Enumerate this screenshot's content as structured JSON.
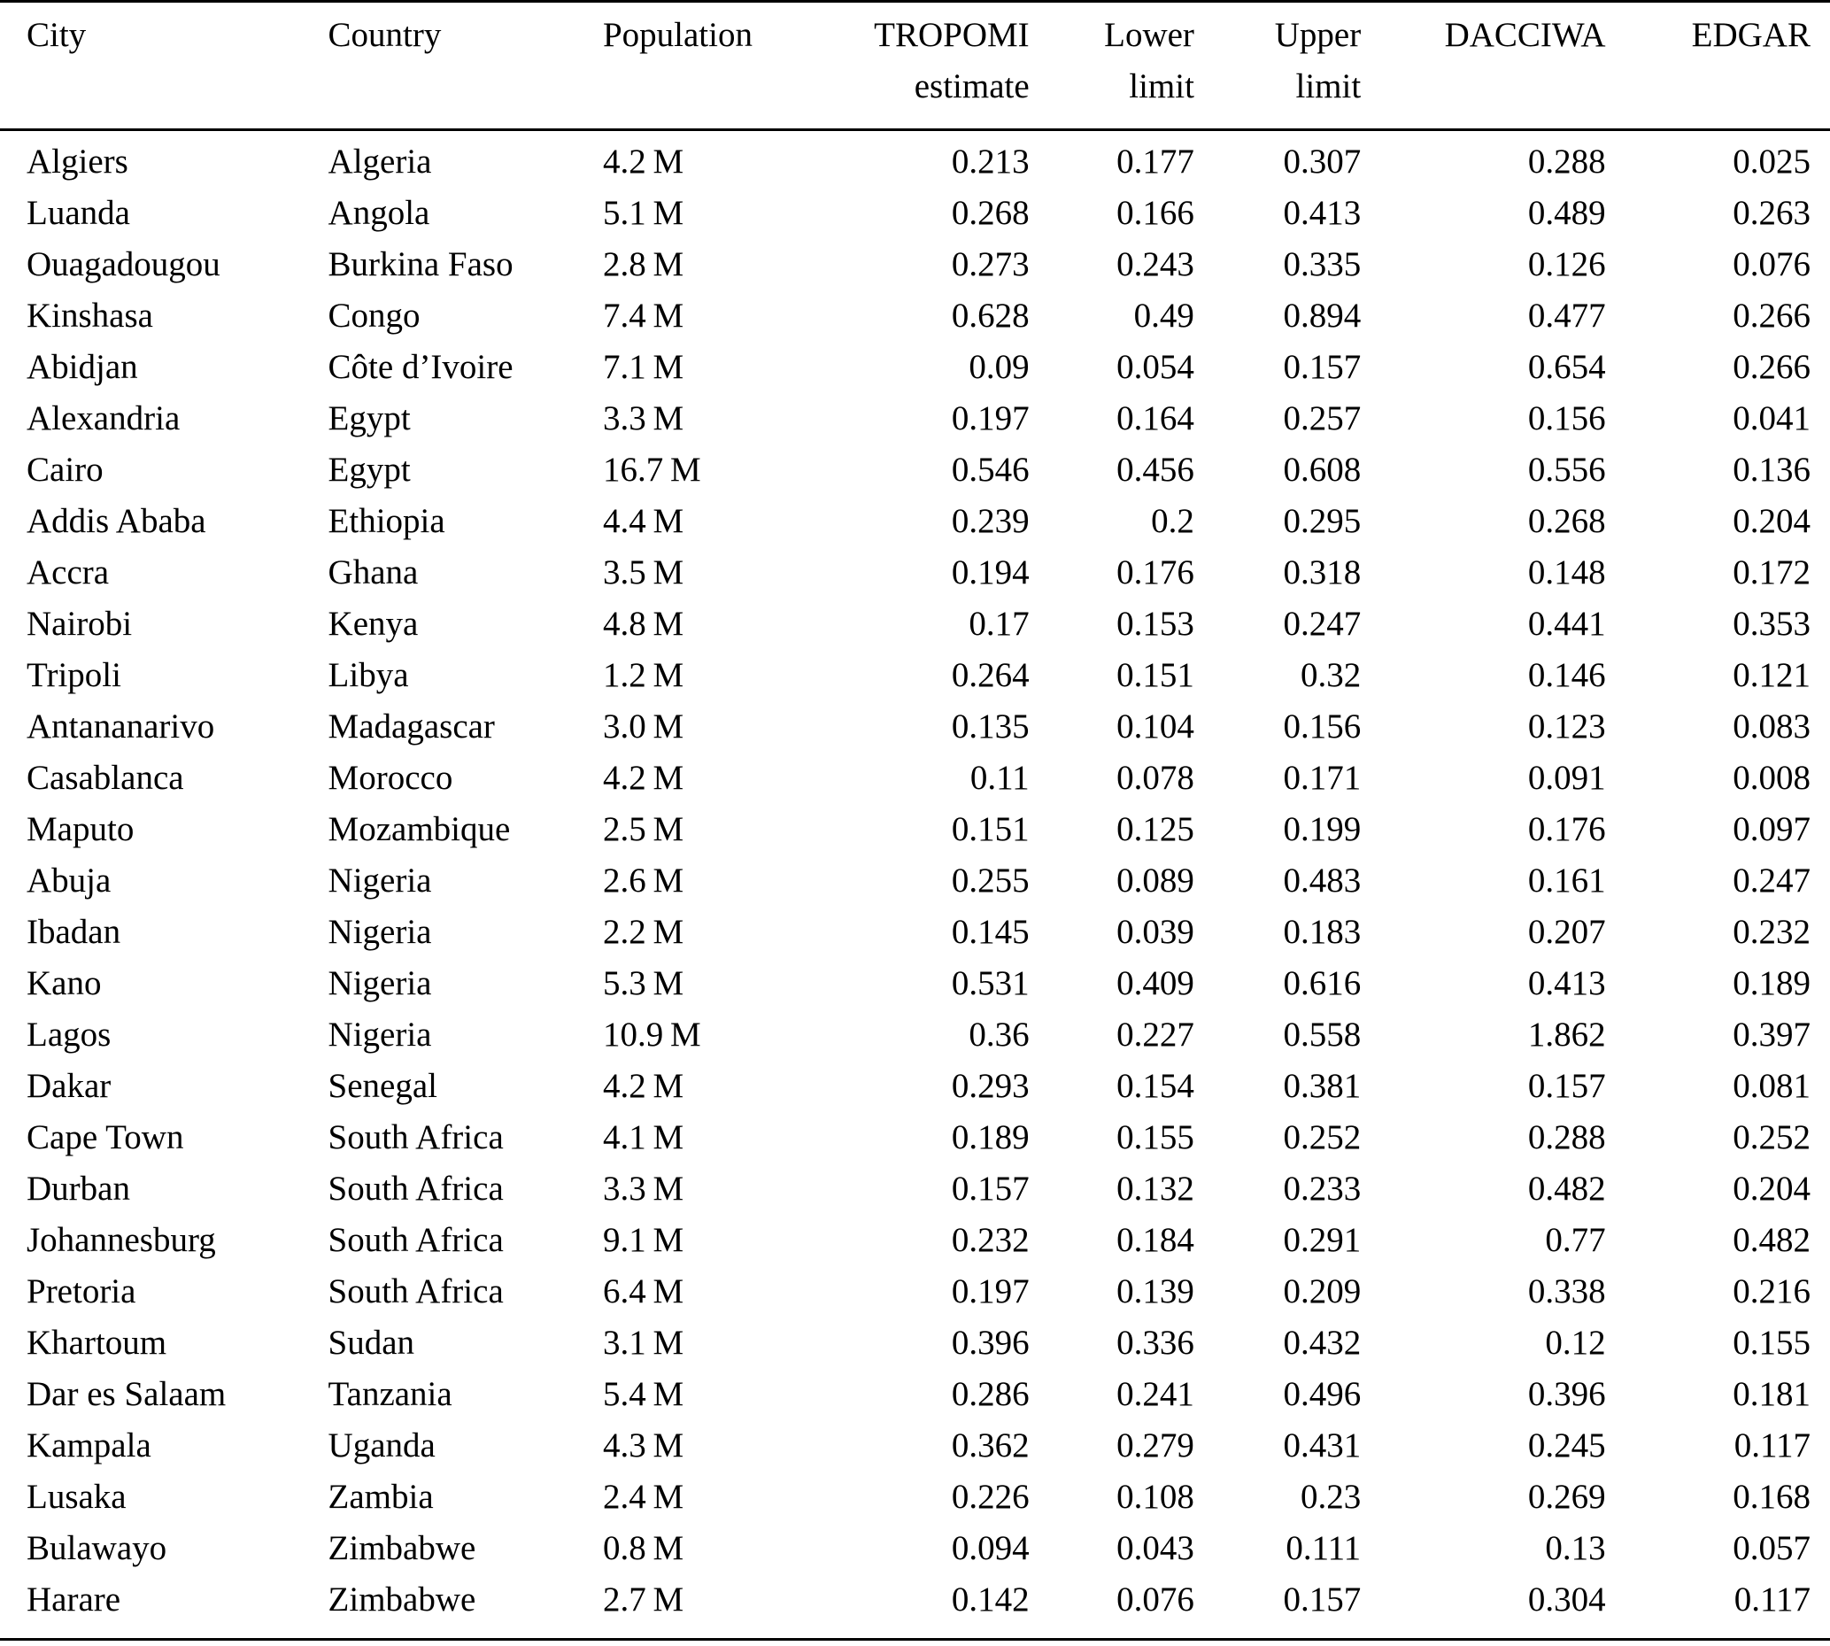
{
  "chart_data": {
    "type": "table",
    "columns": [
      {
        "key": "city",
        "label": "City",
        "header_lines": [
          "City"
        ],
        "align": "left"
      },
      {
        "key": "country",
        "label": "Country",
        "header_lines": [
          "Country"
        ],
        "align": "left"
      },
      {
        "key": "population",
        "label": "Population",
        "header_lines": [
          "Population"
        ],
        "align": "left"
      },
      {
        "key": "tropomi_estimate",
        "label": "TROPOMI estimate",
        "header_lines": [
          "TROPOMI",
          "estimate"
        ],
        "align": "right"
      },
      {
        "key": "lower_limit",
        "label": "Lower limit",
        "header_lines": [
          "Lower",
          "limit"
        ],
        "align": "right"
      },
      {
        "key": "upper_limit",
        "label": "Upper limit",
        "header_lines": [
          "Upper",
          "limit"
        ],
        "align": "right"
      },
      {
        "key": "dacciwa",
        "label": "DACCIWA",
        "header_lines": [
          "DACCIWA"
        ],
        "align": "right"
      },
      {
        "key": "edgar",
        "label": "EDGAR",
        "header_lines": [
          "EDGAR"
        ],
        "align": "right"
      }
    ],
    "rows": [
      {
        "city": "Algiers",
        "country": "Algeria",
        "population": "4.2 M",
        "tropomi_estimate": "0.213",
        "lower_limit": "0.177",
        "upper_limit": "0.307",
        "dacciwa": "0.288",
        "edgar": "0.025"
      },
      {
        "city": "Luanda",
        "country": "Angola",
        "population": "5.1 M",
        "tropomi_estimate": "0.268",
        "lower_limit": "0.166",
        "upper_limit": "0.413",
        "dacciwa": "0.489",
        "edgar": "0.263"
      },
      {
        "city": "Ouagadougou",
        "country": "Burkina Faso",
        "population": "2.8 M",
        "tropomi_estimate": "0.273",
        "lower_limit": "0.243",
        "upper_limit": "0.335",
        "dacciwa": "0.126",
        "edgar": "0.076"
      },
      {
        "city": "Kinshasa",
        "country": "Congo",
        "population": "7.4 M",
        "tropomi_estimate": "0.628",
        "lower_limit": "0.49",
        "upper_limit": "0.894",
        "dacciwa": "0.477",
        "edgar": "0.266"
      },
      {
        "city": "Abidjan",
        "country": "Côte d’Ivoire",
        "population": "7.1 M",
        "tropomi_estimate": "0.09",
        "lower_limit": "0.054",
        "upper_limit": "0.157",
        "dacciwa": "0.654",
        "edgar": "0.266"
      },
      {
        "city": "Alexandria",
        "country": "Egypt",
        "population": "3.3 M",
        "tropomi_estimate": "0.197",
        "lower_limit": "0.164",
        "upper_limit": "0.257",
        "dacciwa": "0.156",
        "edgar": "0.041"
      },
      {
        "city": "Cairo",
        "country": "Egypt",
        "population": "16.7 M",
        "tropomi_estimate": "0.546",
        "lower_limit": "0.456",
        "upper_limit": "0.608",
        "dacciwa": "0.556",
        "edgar": "0.136"
      },
      {
        "city": "Addis Ababa",
        "country": "Ethiopia",
        "population": "4.4 M",
        "tropomi_estimate": "0.239",
        "lower_limit": "0.2",
        "upper_limit": "0.295",
        "dacciwa": "0.268",
        "edgar": "0.204"
      },
      {
        "city": "Accra",
        "country": "Ghana",
        "population": "3.5 M",
        "tropomi_estimate": "0.194",
        "lower_limit": "0.176",
        "upper_limit": "0.318",
        "dacciwa": "0.148",
        "edgar": "0.172"
      },
      {
        "city": "Nairobi",
        "country": "Kenya",
        "population": "4.8 M",
        "tropomi_estimate": "0.17",
        "lower_limit": "0.153",
        "upper_limit": "0.247",
        "dacciwa": "0.441",
        "edgar": "0.353"
      },
      {
        "city": "Tripoli",
        "country": "Libya",
        "population": "1.2 M",
        "tropomi_estimate": "0.264",
        "lower_limit": "0.151",
        "upper_limit": "0.32",
        "dacciwa": "0.146",
        "edgar": "0.121"
      },
      {
        "city": "Antananarivo",
        "country": "Madagascar",
        "population": "3.0 M",
        "tropomi_estimate": "0.135",
        "lower_limit": "0.104",
        "upper_limit": "0.156",
        "dacciwa": "0.123",
        "edgar": "0.083"
      },
      {
        "city": "Casablanca",
        "country": "Morocco",
        "population": "4.2 M",
        "tropomi_estimate": "0.11",
        "lower_limit": "0.078",
        "upper_limit": "0.171",
        "dacciwa": "0.091",
        "edgar": "0.008"
      },
      {
        "city": "Maputo",
        "country": "Mozambique",
        "population": "2.5 M",
        "tropomi_estimate": "0.151",
        "lower_limit": "0.125",
        "upper_limit": "0.199",
        "dacciwa": "0.176",
        "edgar": "0.097"
      },
      {
        "city": "Abuja",
        "country": "Nigeria",
        "population": "2.6 M",
        "tropomi_estimate": "0.255",
        "lower_limit": "0.089",
        "upper_limit": "0.483",
        "dacciwa": "0.161",
        "edgar": "0.247"
      },
      {
        "city": "Ibadan",
        "country": "Nigeria",
        "population": "2.2 M",
        "tropomi_estimate": "0.145",
        "lower_limit": "0.039",
        "upper_limit": "0.183",
        "dacciwa": "0.207",
        "edgar": "0.232"
      },
      {
        "city": "Kano",
        "country": "Nigeria",
        "population": "5.3 M",
        "tropomi_estimate": "0.531",
        "lower_limit": "0.409",
        "upper_limit": "0.616",
        "dacciwa": "0.413",
        "edgar": "0.189"
      },
      {
        "city": "Lagos",
        "country": "Nigeria",
        "population": "10.9 M",
        "tropomi_estimate": "0.36",
        "lower_limit": "0.227",
        "upper_limit": "0.558",
        "dacciwa": "1.862",
        "edgar": "0.397"
      },
      {
        "city": "Dakar",
        "country": "Senegal",
        "population": "4.2 M",
        "tropomi_estimate": "0.293",
        "lower_limit": "0.154",
        "upper_limit": "0.381",
        "dacciwa": "0.157",
        "edgar": "0.081"
      },
      {
        "city": "Cape Town",
        "country": "South Africa",
        "population": "4.1 M",
        "tropomi_estimate": "0.189",
        "lower_limit": "0.155",
        "upper_limit": "0.252",
        "dacciwa": "0.288",
        "edgar": "0.252"
      },
      {
        "city": "Durban",
        "country": "South Africa",
        "population": "3.3 M",
        "tropomi_estimate": "0.157",
        "lower_limit": "0.132",
        "upper_limit": "0.233",
        "dacciwa": "0.482",
        "edgar": "0.204"
      },
      {
        "city": "Johannesburg",
        "country": "South Africa",
        "population": "9.1 M",
        "tropomi_estimate": "0.232",
        "lower_limit": "0.184",
        "upper_limit": "0.291",
        "dacciwa": "0.77",
        "edgar": "0.482"
      },
      {
        "city": "Pretoria",
        "country": "South Africa",
        "population": "6.4 M",
        "tropomi_estimate": "0.197",
        "lower_limit": "0.139",
        "upper_limit": "0.209",
        "dacciwa": "0.338",
        "edgar": "0.216"
      },
      {
        "city": "Khartoum",
        "country": "Sudan",
        "population": "3.1 M",
        "tropomi_estimate": "0.396",
        "lower_limit": "0.336",
        "upper_limit": "0.432",
        "dacciwa": "0.12",
        "edgar": "0.155"
      },
      {
        "city": "Dar es Salaam",
        "country": "Tanzania",
        "population": "5.4 M",
        "tropomi_estimate": "0.286",
        "lower_limit": "0.241",
        "upper_limit": "0.496",
        "dacciwa": "0.396",
        "edgar": "0.181"
      },
      {
        "city": "Kampala",
        "country": "Uganda",
        "population": "4.3 M",
        "tropomi_estimate": "0.362",
        "lower_limit": "0.279",
        "upper_limit": "0.431",
        "dacciwa": "0.245",
        "edgar": "0.117"
      },
      {
        "city": "Lusaka",
        "country": "Zambia",
        "population": "2.4 M",
        "tropomi_estimate": "0.226",
        "lower_limit": "0.108",
        "upper_limit": "0.23",
        "dacciwa": "0.269",
        "edgar": "0.168"
      },
      {
        "city": "Bulawayo",
        "country": "Zimbabwe",
        "population": "0.8 M",
        "tropomi_estimate": "0.094",
        "lower_limit": "0.043",
        "upper_limit": "0.111",
        "dacciwa": "0.13",
        "edgar": "0.057"
      },
      {
        "city": "Harare",
        "country": "Zimbabwe",
        "population": "2.7 M",
        "tropomi_estimate": "0.142",
        "lower_limit": "0.076",
        "upper_limit": "0.157",
        "dacciwa": "0.304",
        "edgar": "0.117"
      }
    ]
  }
}
